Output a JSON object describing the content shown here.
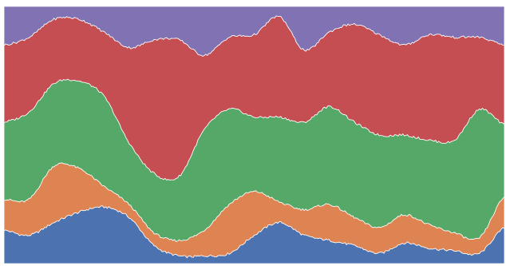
{
  "chart_data": {
    "type": "area",
    "stacked": true,
    "title": "",
    "xlabel": "",
    "ylabel": "",
    "xlim": [
      0,
      100
    ],
    "ylim": [
      0,
      100
    ],
    "grid": false,
    "legend": "none",
    "x": [
      0,
      5,
      10,
      15,
      20,
      25,
      30,
      35,
      40,
      45,
      50,
      55,
      60,
      65,
      70,
      75,
      80,
      85,
      90,
      95,
      100
    ],
    "series": [
      {
        "color": "#4c72b0",
        "values": [
          13,
          11,
          16,
          20,
          22,
          18,
          7,
          3,
          3,
          4,
          11,
          16,
          11,
          9,
          7,
          4,
          8,
          6,
          5,
          4,
          14
        ]
      },
      {
        "color": "#dd8452",
        "values": [
          12,
          14,
          22,
          17,
          8,
          5,
          5,
          6,
          10,
          19,
          17,
          8,
          10,
          14,
          11,
          10,
          11,
          9,
          7,
          6,
          12
        ]
      },
      {
        "color": "#55a868",
        "values": [
          30,
          34,
          32,
          34,
          35,
          24,
          23,
          25,
          39,
          37,
          29,
          33,
          34,
          38,
          37,
          36,
          31,
          33,
          36,
          50,
          28
        ]
      },
      {
        "color": "#c44e52",
        "values": [
          30,
          29,
          25,
          24,
          25,
          37,
          52,
          53,
          29,
          28,
          32,
          39,
          28,
          29,
          38,
          39,
          35,
          41,
          40,
          28,
          31
        ]
      },
      {
        "color": "#8172b3",
        "values": [
          15,
          12,
          5,
          5,
          10,
          16,
          13,
          13,
          19,
          12,
          11,
          4,
          17,
          10,
          7,
          11,
          15,
          11,
          12,
          12,
          15
        ]
      }
    ]
  }
}
